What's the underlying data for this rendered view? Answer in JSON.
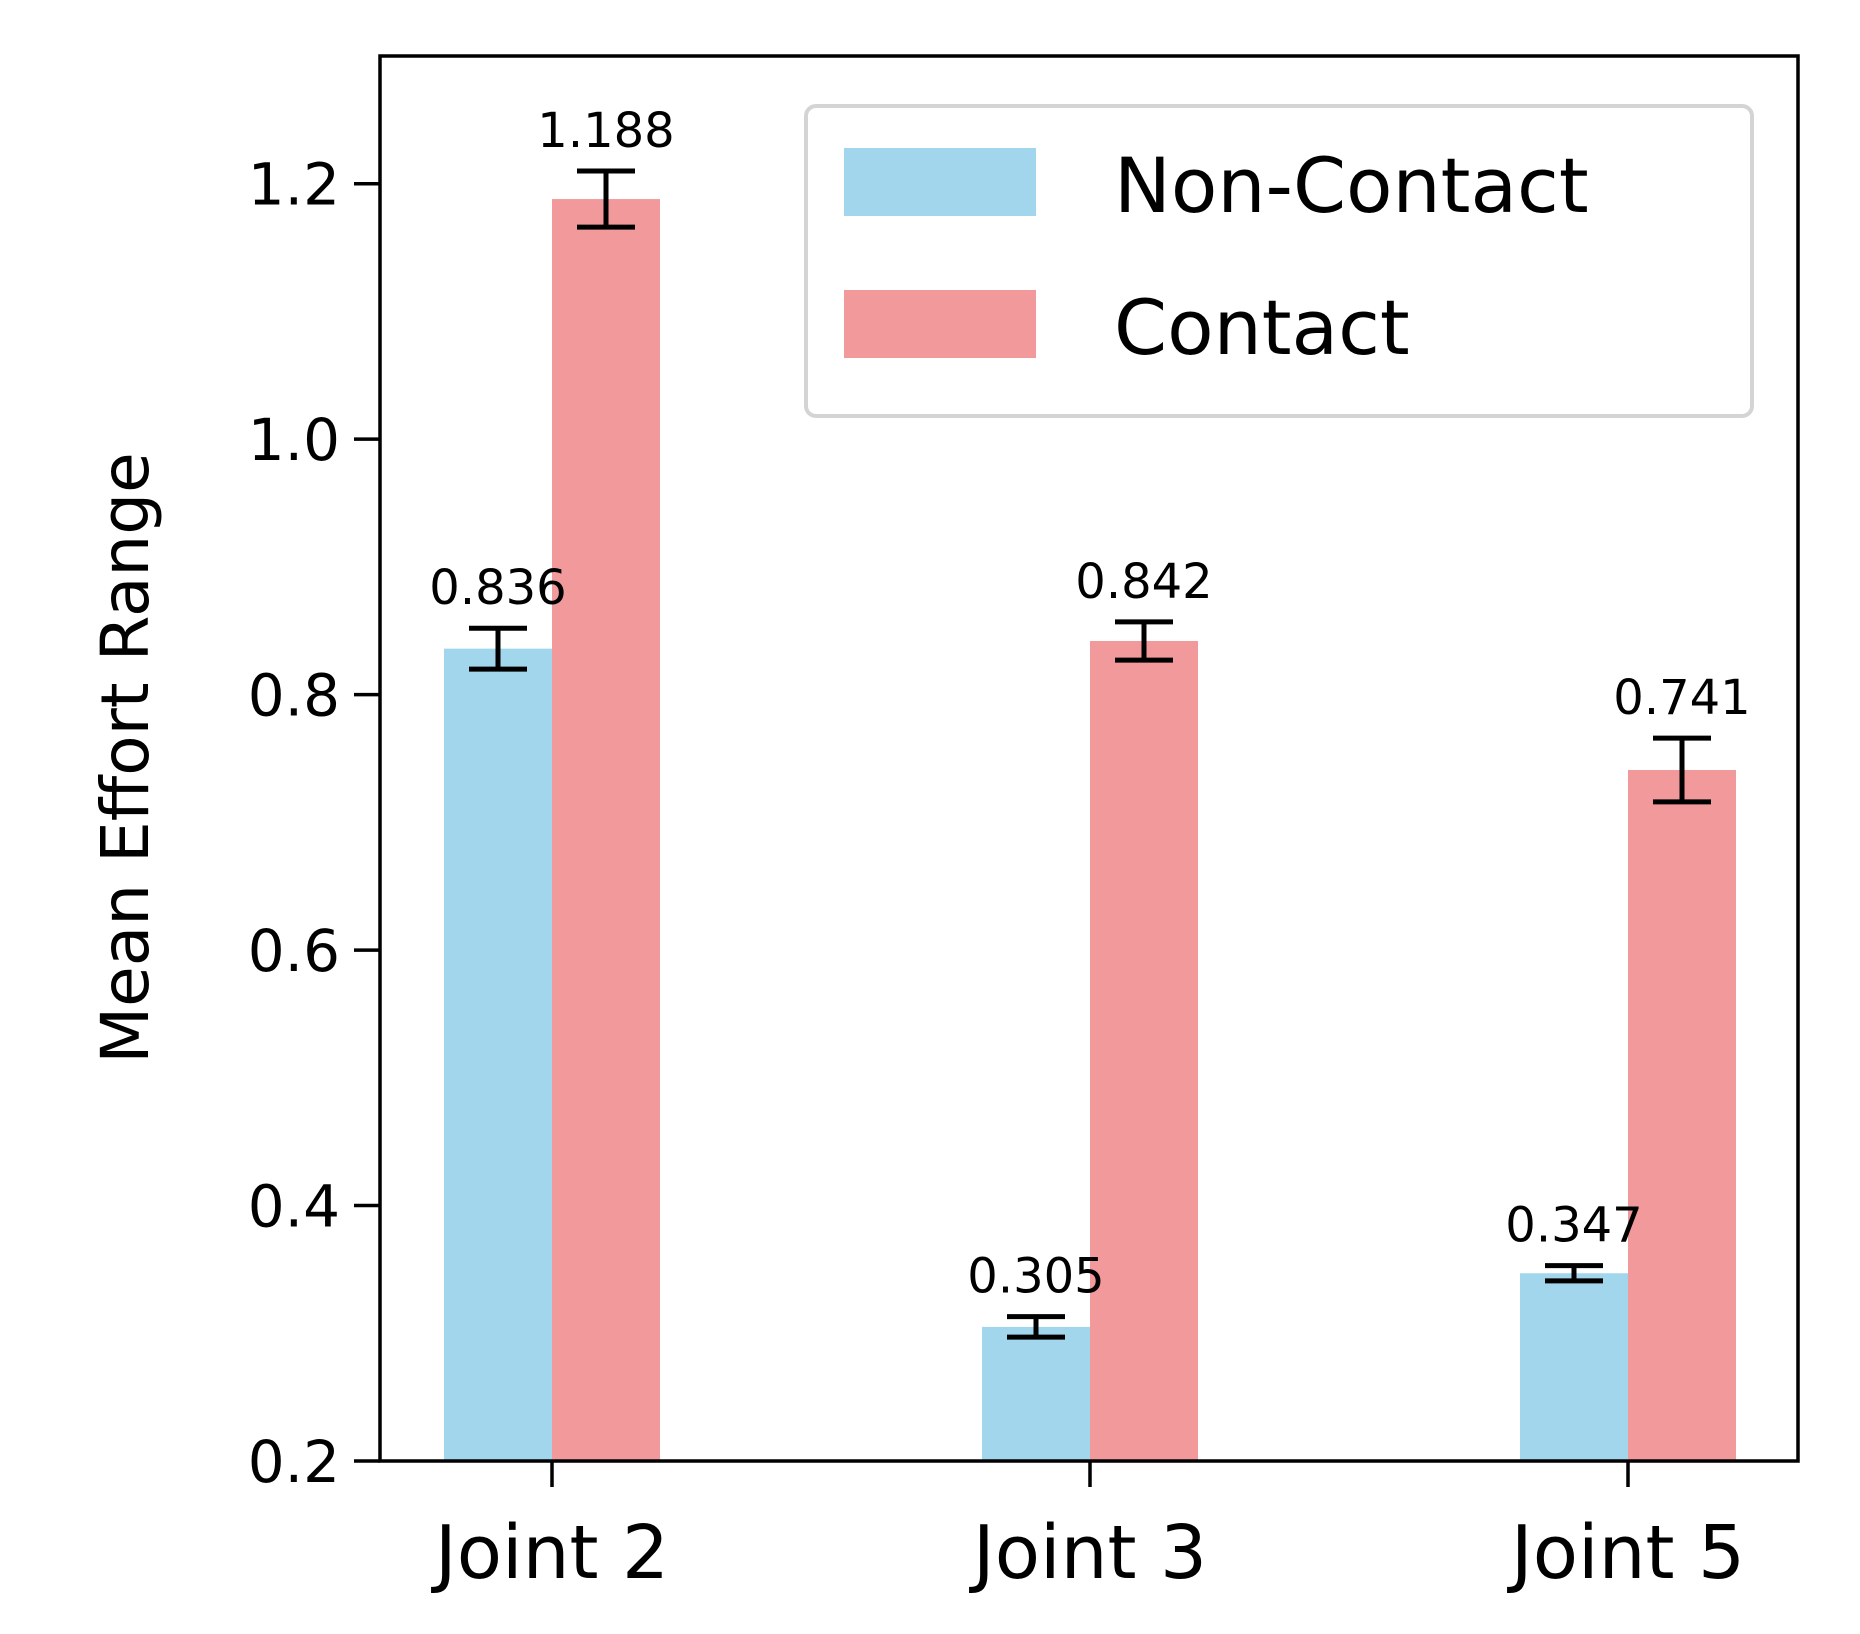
{
  "chart_data": {
    "type": "bar",
    "categories": [
      "Joint 2",
      "Joint 3",
      "Joint 5"
    ],
    "ylabel": "Mean Effort Range",
    "ylim": [
      0.2,
      1.3
    ],
    "yticks": [
      0.2,
      0.4,
      0.6,
      0.8,
      1.0,
      1.2
    ],
    "ytick_labels": [
      "0.2",
      "0.4",
      "0.6",
      "0.8",
      "1.0",
      "1.2"
    ],
    "grid": false,
    "legend_position": "top-right",
    "series": [
      {
        "name": "Non-Contact",
        "color": "#a1d6ed",
        "values": [
          0.836,
          0.305,
          0.347
        ],
        "errors": [
          0.016,
          0.008,
          0.006
        ],
        "labels": [
          "0.836",
          "0.305",
          "0.347"
        ]
      },
      {
        "name": "Contact",
        "color": "#f29a9b",
        "values": [
          1.188,
          0.842,
          0.741
        ],
        "errors": [
          0.022,
          0.015,
          0.025
        ],
        "labels": [
          "1.188",
          "0.842",
          "0.741"
        ]
      }
    ]
  }
}
